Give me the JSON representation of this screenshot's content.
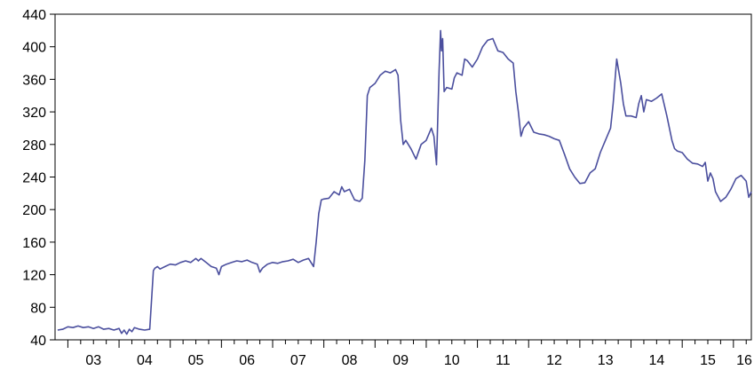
{
  "chart_data": {
    "type": "line",
    "title": "",
    "xlabel": "",
    "ylabel": "",
    "ylim": [
      40,
      440
    ],
    "y_ticks": [
      40,
      80,
      120,
      160,
      200,
      240,
      280,
      320,
      360,
      400,
      440
    ],
    "xlim": [
      2002.75,
      2016.35
    ],
    "x_tick_labels": [
      "03",
      "04",
      "05",
      "06",
      "07",
      "08",
      "09",
      "10",
      "11",
      "12",
      "13",
      "14",
      "15",
      "16"
    ],
    "grid": false,
    "colors": {
      "line": "#4b4f9e",
      "axis": "#000000"
    },
    "series": [
      {
        "values": [
          [
            2002.8,
            52
          ],
          [
            2002.9,
            53
          ],
          [
            2003.0,
            56
          ],
          [
            2003.1,
            55
          ],
          [
            2003.2,
            57
          ],
          [
            2003.3,
            55
          ],
          [
            2003.4,
            56
          ],
          [
            2003.5,
            54
          ],
          [
            2003.6,
            56
          ],
          [
            2003.7,
            53
          ],
          [
            2003.8,
            54
          ],
          [
            2003.9,
            52
          ],
          [
            2004.0,
            54
          ],
          [
            2004.05,
            48
          ],
          [
            2004.1,
            52
          ],
          [
            2004.15,
            47
          ],
          [
            2004.2,
            53
          ],
          [
            2004.25,
            50
          ],
          [
            2004.3,
            55
          ],
          [
            2004.4,
            53
          ],
          [
            2004.5,
            52
          ],
          [
            2004.6,
            53
          ],
          [
            2004.67,
            125
          ],
          [
            2004.7,
            128
          ],
          [
            2004.75,
            130
          ],
          [
            2004.8,
            127
          ],
          [
            2004.9,
            130
          ],
          [
            2005.0,
            133
          ],
          [
            2005.1,
            132
          ],
          [
            2005.2,
            135
          ],
          [
            2005.3,
            137
          ],
          [
            2005.4,
            135
          ],
          [
            2005.5,
            140
          ],
          [
            2005.55,
            137
          ],
          [
            2005.6,
            140
          ],
          [
            2005.7,
            135
          ],
          [
            2005.8,
            130
          ],
          [
            2005.9,
            128
          ],
          [
            2005.95,
            120
          ],
          [
            2006.0,
            130
          ],
          [
            2006.1,
            133
          ],
          [
            2006.2,
            135
          ],
          [
            2006.3,
            137
          ],
          [
            2006.4,
            136
          ],
          [
            2006.5,
            138
          ],
          [
            2006.6,
            135
          ],
          [
            2006.7,
            133
          ],
          [
            2006.75,
            123
          ],
          [
            2006.8,
            128
          ],
          [
            2006.9,
            133
          ],
          [
            2007.0,
            135
          ],
          [
            2007.1,
            134
          ],
          [
            2007.2,
            136
          ],
          [
            2007.3,
            137
          ],
          [
            2007.4,
            139
          ],
          [
            2007.5,
            135
          ],
          [
            2007.6,
            138
          ],
          [
            2007.7,
            140
          ],
          [
            2007.75,
            135
          ],
          [
            2007.8,
            130
          ],
          [
            2007.85,
            160
          ],
          [
            2007.9,
            195
          ],
          [
            2007.95,
            212
          ],
          [
            2008.0,
            213
          ],
          [
            2008.1,
            214
          ],
          [
            2008.2,
            222
          ],
          [
            2008.3,
            218
          ],
          [
            2008.35,
            228
          ],
          [
            2008.4,
            222
          ],
          [
            2008.5,
            225
          ],
          [
            2008.6,
            212
          ],
          [
            2008.7,
            210
          ],
          [
            2008.75,
            214
          ],
          [
            2008.8,
            260
          ],
          [
            2008.85,
            340
          ],
          [
            2008.9,
            350
          ],
          [
            2009.0,
            355
          ],
          [
            2009.1,
            365
          ],
          [
            2009.2,
            370
          ],
          [
            2009.3,
            368
          ],
          [
            2009.4,
            372
          ],
          [
            2009.45,
            365
          ],
          [
            2009.5,
            310
          ],
          [
            2009.55,
            280
          ],
          [
            2009.6,
            285
          ],
          [
            2009.7,
            275
          ],
          [
            2009.8,
            262
          ],
          [
            2009.9,
            280
          ],
          [
            2010.0,
            285
          ],
          [
            2010.1,
            300
          ],
          [
            2010.15,
            290
          ],
          [
            2010.2,
            255
          ],
          [
            2010.25,
            370
          ],
          [
            2010.28,
            420
          ],
          [
            2010.3,
            395
          ],
          [
            2010.32,
            410
          ],
          [
            2010.35,
            345
          ],
          [
            2010.4,
            350
          ],
          [
            2010.5,
            348
          ],
          [
            2010.55,
            362
          ],
          [
            2010.6,
            368
          ],
          [
            2010.7,
            365
          ],
          [
            2010.75,
            385
          ],
          [
            2010.8,
            383
          ],
          [
            2010.9,
            375
          ],
          [
            2011.0,
            385
          ],
          [
            2011.1,
            400
          ],
          [
            2011.2,
            408
          ],
          [
            2011.3,
            410
          ],
          [
            2011.4,
            395
          ],
          [
            2011.5,
            393
          ],
          [
            2011.6,
            385
          ],
          [
            2011.7,
            380
          ],
          [
            2011.75,
            345
          ],
          [
            2011.8,
            320
          ],
          [
            2011.85,
            290
          ],
          [
            2011.9,
            300
          ],
          [
            2012.0,
            308
          ],
          [
            2012.1,
            295
          ],
          [
            2012.2,
            293
          ],
          [
            2012.3,
            292
          ],
          [
            2012.4,
            290
          ],
          [
            2012.5,
            287
          ],
          [
            2012.6,
            285
          ],
          [
            2012.7,
            268
          ],
          [
            2012.8,
            250
          ],
          [
            2012.9,
            240
          ],
          [
            2013.0,
            232
          ],
          [
            2013.1,
            233
          ],
          [
            2013.2,
            245
          ],
          [
            2013.3,
            250
          ],
          [
            2013.4,
            270
          ],
          [
            2013.5,
            285
          ],
          [
            2013.6,
            300
          ],
          [
            2013.65,
            330
          ],
          [
            2013.72,
            385
          ],
          [
            2013.8,
            355
          ],
          [
            2013.85,
            330
          ],
          [
            2013.9,
            315
          ],
          [
            2014.0,
            315
          ],
          [
            2014.1,
            313
          ],
          [
            2014.15,
            330
          ],
          [
            2014.2,
            340
          ],
          [
            2014.25,
            320
          ],
          [
            2014.3,
            335
          ],
          [
            2014.4,
            333
          ],
          [
            2014.5,
            337
          ],
          [
            2014.6,
            342
          ],
          [
            2014.7,
            315
          ],
          [
            2014.8,
            285
          ],
          [
            2014.85,
            275
          ],
          [
            2014.9,
            272
          ],
          [
            2015.0,
            270
          ],
          [
            2015.1,
            262
          ],
          [
            2015.2,
            257
          ],
          [
            2015.3,
            256
          ],
          [
            2015.4,
            253
          ],
          [
            2015.45,
            258
          ],
          [
            2015.5,
            235
          ],
          [
            2015.55,
            245
          ],
          [
            2015.6,
            238
          ],
          [
            2015.65,
            222
          ],
          [
            2015.75,
            210
          ],
          [
            2015.85,
            215
          ],
          [
            2015.95,
            225
          ],
          [
            2016.05,
            238
          ],
          [
            2016.15,
            242
          ],
          [
            2016.25,
            235
          ],
          [
            2016.3,
            215
          ],
          [
            2016.35,
            222
          ]
        ]
      }
    ]
  }
}
